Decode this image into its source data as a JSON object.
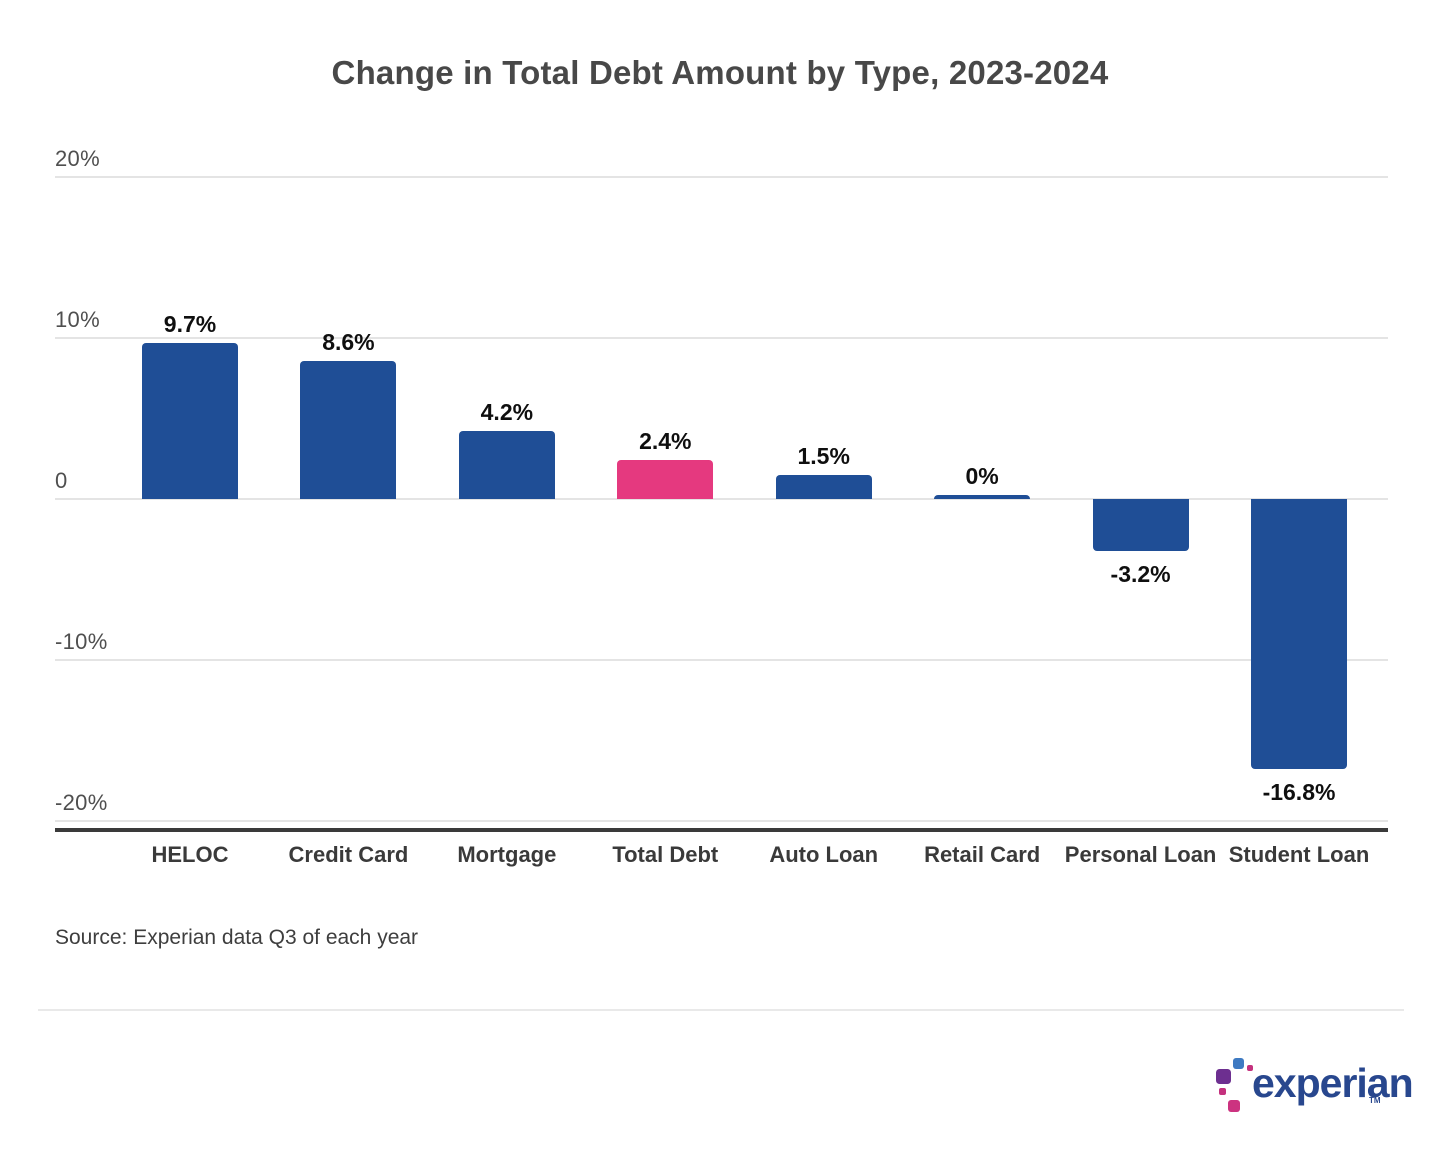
{
  "title": "Change in Total Debt Amount by Type, 2023-2024",
  "source": "Source: Experian data Q3 of each year",
  "chart_data": {
    "type": "bar",
    "title": "Change in Total Debt Amount by Type, 2023-2024",
    "categories": [
      "HELOC",
      "Credit Card",
      "Mortgage",
      "Total Debt",
      "Auto Loan",
      "Retail Card",
      "Personal Loan",
      "Student Loan"
    ],
    "values": [
      9.7,
      8.6,
      4.2,
      2.4,
      1.5,
      0,
      -3.2,
      -16.8
    ],
    "value_labels": [
      "9.7%",
      "8.6%",
      "4.2%",
      "2.4%",
      "1.5%",
      "0%",
      "-3.2%",
      "-16.8%"
    ],
    "highlight_index": 3,
    "xlabel": "",
    "ylabel": "",
    "ylim": [
      -20,
      20
    ],
    "yticks": [
      {
        "value": 20,
        "label": "20%"
      },
      {
        "value": 10,
        "label": "10%"
      },
      {
        "value": 0,
        "label": "0"
      },
      {
        "value": -10,
        "label": "-10%"
      },
      {
        "value": -20,
        "label": "-20%"
      }
    ],
    "grid": true,
    "legend": false,
    "colors": {
      "bar": "#1F4E96",
      "highlight": "#E5397F",
      "axis": "#3a3a3a",
      "gridline": "#e4e4e4"
    }
  },
  "logo": {
    "text": "experian",
    "tm": "TM",
    "colors": {
      "wordmark": "#28478E",
      "blue": "#3E7AC2",
      "purple": "#6D2F90",
      "pink": "#C4317E",
      "magenta": "#CC3380"
    }
  }
}
